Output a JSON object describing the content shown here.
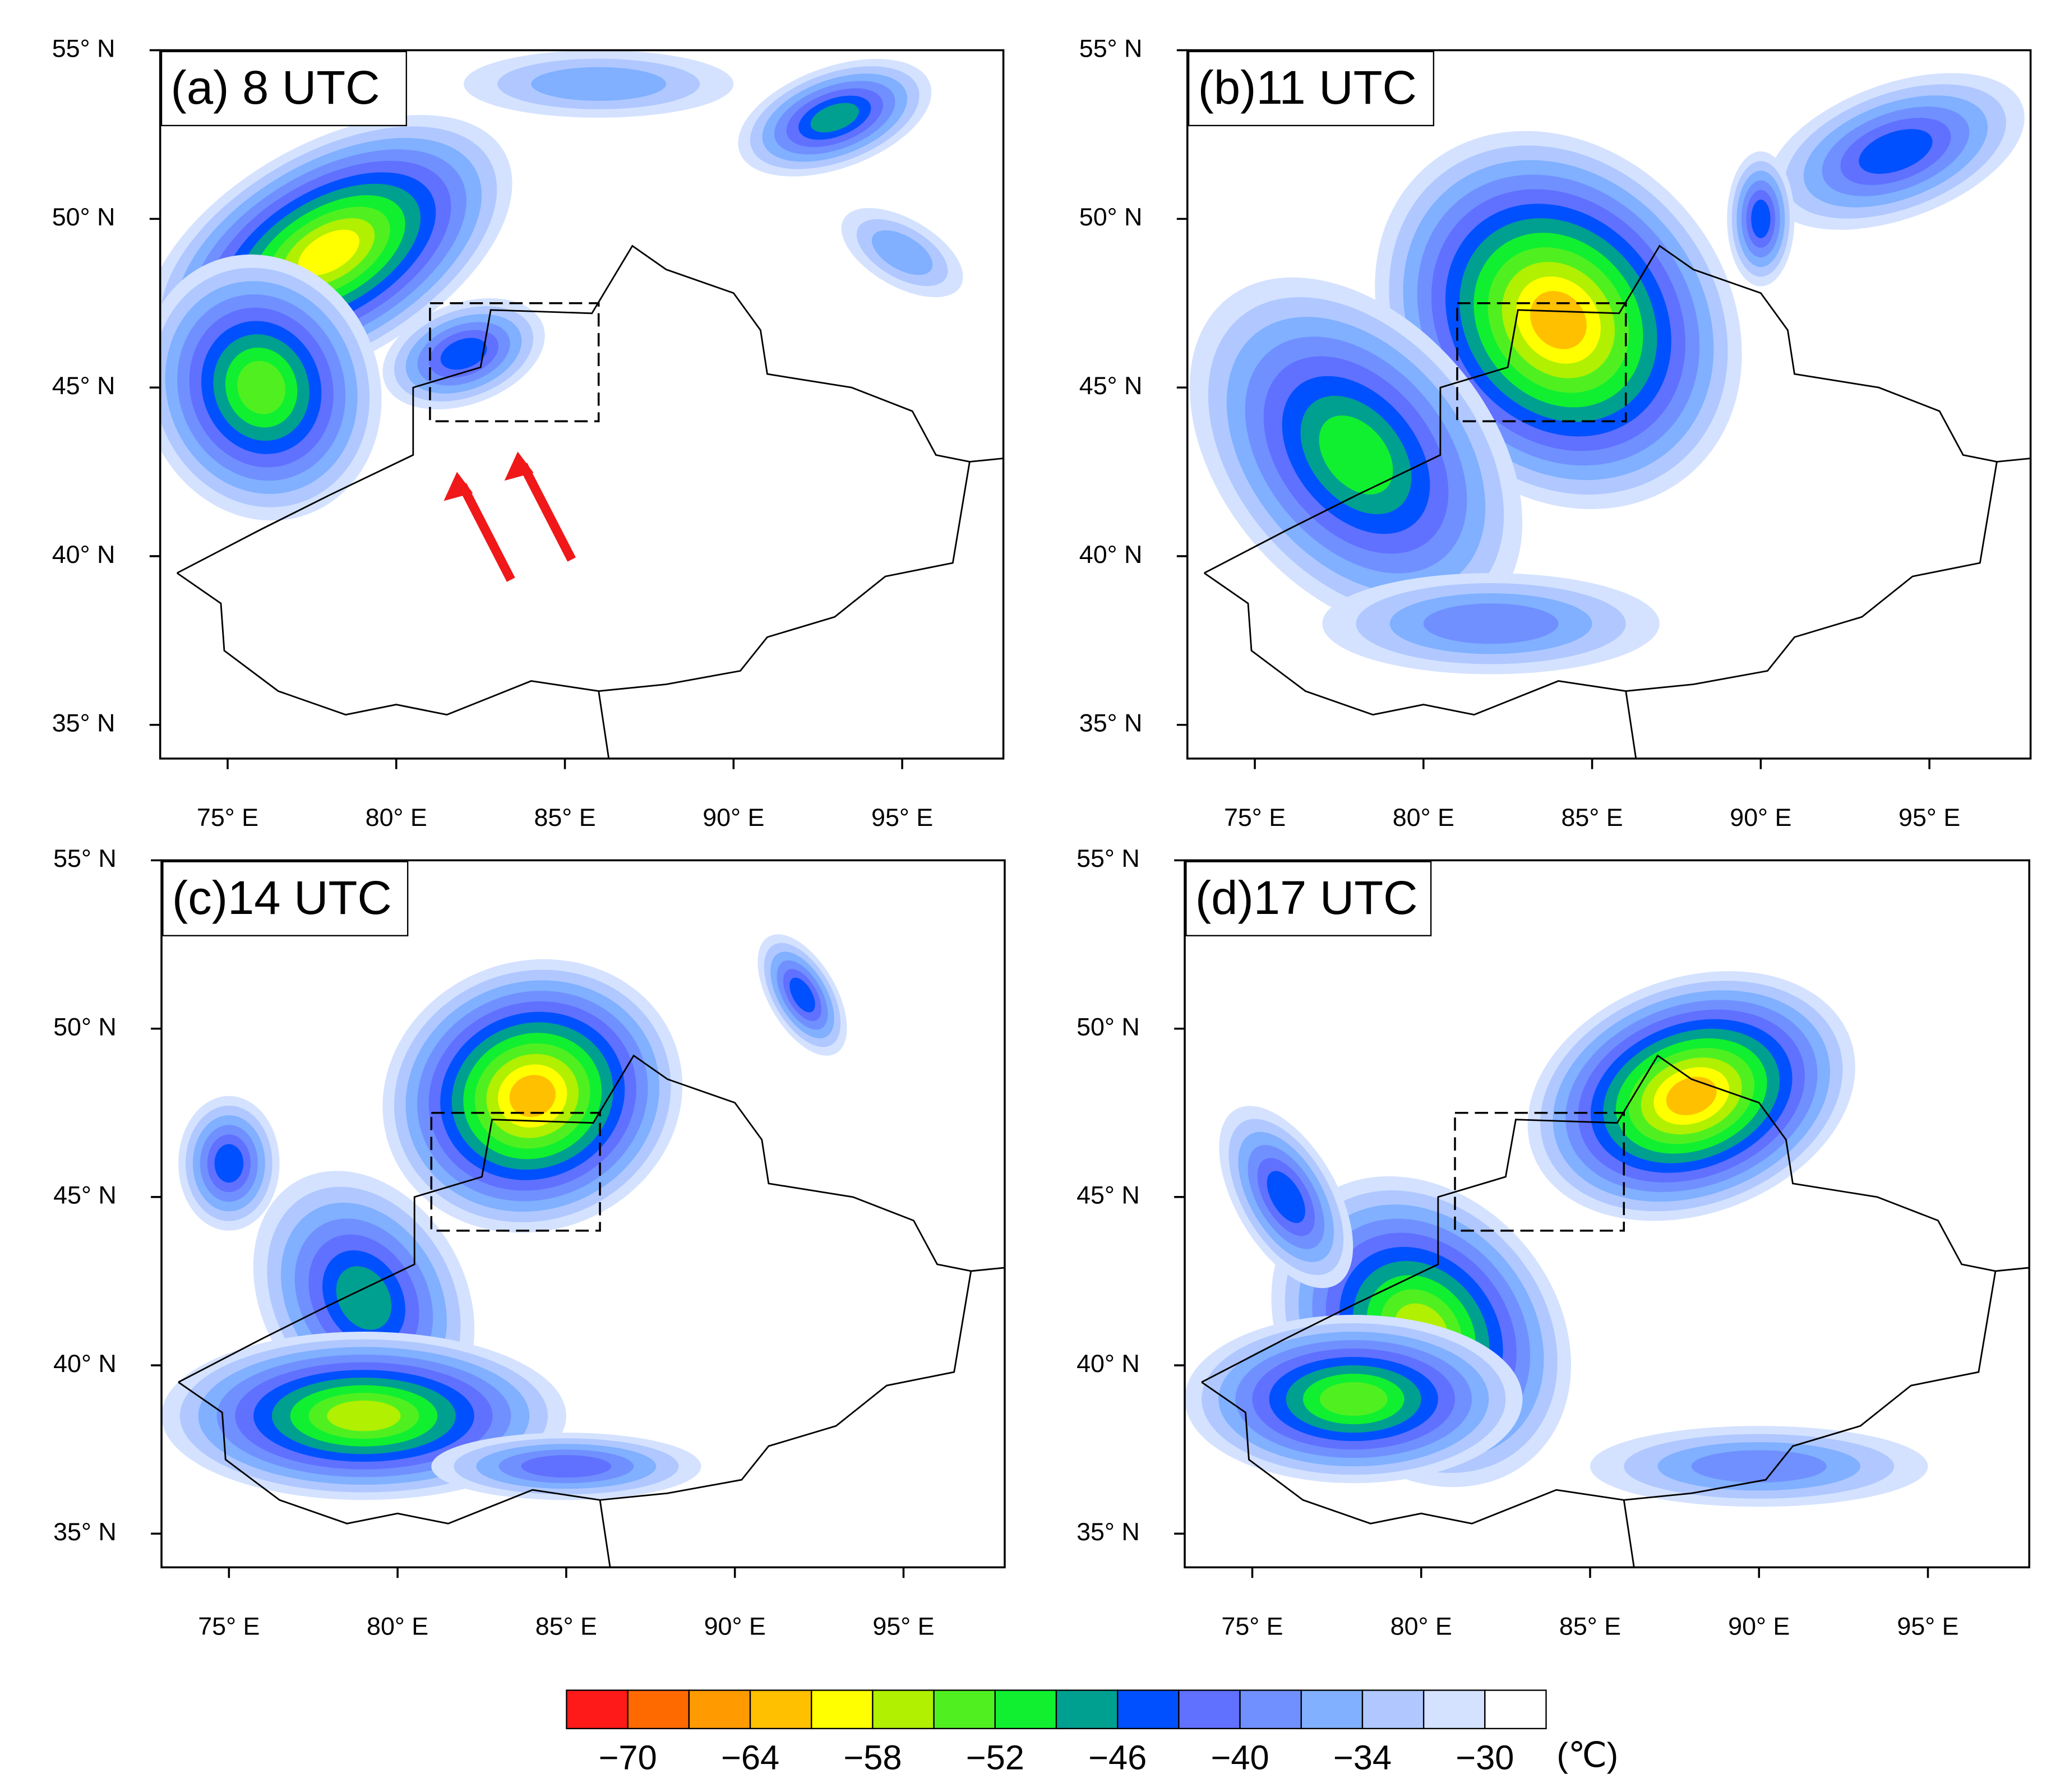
{
  "maps": {
    "panels": [
      {
        "label": "(a) 8 UTC"
      },
      {
        "label": "(b)11 UTC"
      },
      {
        "label": "(c)14 UTC"
      },
      {
        "label": "(d)17 UTC"
      }
    ],
    "xlim": [
      73,
      98
    ],
    "ylim": [
      34,
      55
    ],
    "xticks": [
      {
        "value": 75,
        "label": "75° E"
      },
      {
        "value": 80,
        "label": "80° E"
      },
      {
        "value": 85,
        "label": "85° E"
      },
      {
        "value": 90,
        "label": "90° E"
      },
      {
        "value": 95,
        "label": "95° E"
      }
    ],
    "yticks": [
      {
        "value": 35,
        "label": "35° N"
      },
      {
        "value": 40,
        "label": "40° N"
      },
      {
        "value": 45,
        "label": "45° N"
      },
      {
        "value": 50,
        "label": "50° N"
      },
      {
        "value": 55,
        "label": "55° N"
      }
    ],
    "colorbar": {
      "colors": [
        "#ff1a1a",
        "#ff6a00",
        "#ff9a00",
        "#ffc000",
        "#ffff00",
        "#b0f000",
        "#50f020",
        "#10f030",
        "#00a090",
        "#0050ff",
        "#6070ff",
        "#7090ff",
        "#80b0ff",
        "#b0c8ff",
        "#d4e2ff",
        "#ffffff"
      ],
      "ticks": [
        {
          "value": -70,
          "label": "−70"
        },
        {
          "value": -64,
          "label": "−64"
        },
        {
          "value": -58,
          "label": "−58"
        },
        {
          "value": -52,
          "label": "−52"
        },
        {
          "value": -46,
          "label": "−46"
        },
        {
          "value": -40,
          "label": "−40"
        },
        {
          "value": -34,
          "label": "−34"
        },
        {
          "value": -30,
          "label": "−30"
        }
      ],
      "unit": "(℃)"
    }
  }
}
